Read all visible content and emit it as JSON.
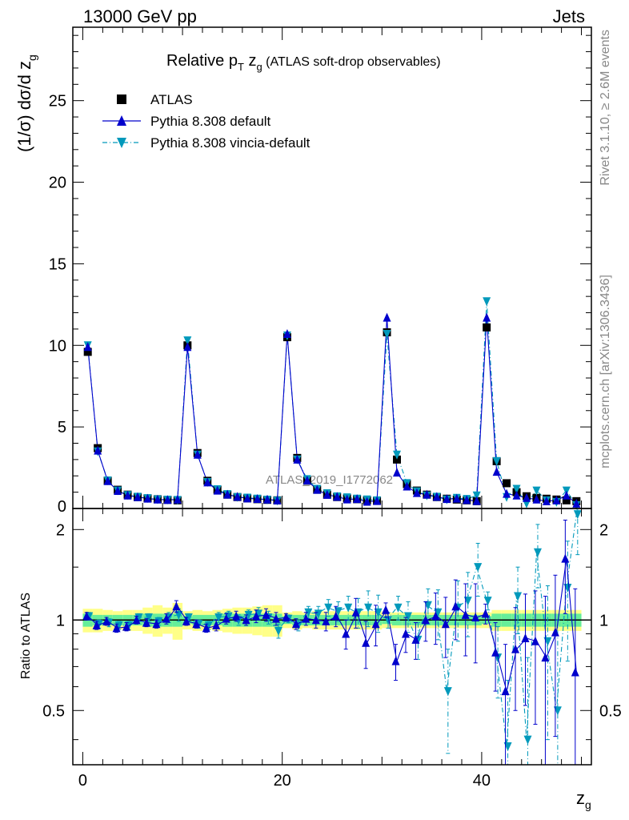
{
  "header": {
    "left": "13000 GeV pp",
    "right": "Jets"
  },
  "side": {
    "rivet": "Rivet 3.1.10, ≥ 2.6M events",
    "mcplots": "mcplots.cern.ch [arXiv:1306.3436]"
  },
  "plot": {
    "title_main": "Relative p",
    "title_sub_T": "T",
    "title_z": " z",
    "title_sub_g": "g",
    "title_tail": " (ATLAS soft-drop observables)",
    "ylabel_main": "(1/σ) dσ/d z",
    "ylabel_sub": "g",
    "xlabel_main": "z",
    "xlabel_sub": "g",
    "ratio_ylabel": "Ratio to ATLAS",
    "watermark": "ATLAS_2019_I1772062"
  },
  "legend": [
    {
      "label": "ATLAS",
      "color": "#000000",
      "marker": "square",
      "line": "none"
    },
    {
      "label": "Pythia 8.308 default",
      "color": "#0000cc",
      "marker": "triangle-up",
      "line": "solid"
    },
    {
      "label": "Pythia 8.308 vincia-default",
      "color": "#0099bb",
      "marker": "triangle-down",
      "line": "dashdot"
    }
  ],
  "chart_data": {
    "type": "line",
    "x": [
      0.5,
      1.5,
      2.5,
      3.5,
      4.5,
      5.5,
      6.5,
      7.5,
      8.5,
      9.5,
      10.5,
      11.5,
      12.5,
      13.5,
      14.5,
      15.5,
      16.5,
      17.5,
      18.5,
      19.5,
      20.5,
      21.5,
      22.5,
      23.5,
      24.5,
      25.5,
      26.5,
      27.5,
      28.5,
      29.5,
      30.5,
      31.5,
      32.5,
      33.5,
      34.5,
      35.5,
      36.5,
      37.5,
      38.5,
      39.5,
      40.5,
      41.5,
      42.5,
      43.5,
      44.5,
      45.5,
      46.5,
      47.5,
      48.5,
      49.5
    ],
    "xlim": [
      -1,
      51
    ],
    "ylim": [
      0,
      29.5
    ],
    "xticks": [
      0,
      20,
      40
    ],
    "yticks": [
      5,
      10,
      15,
      20,
      25
    ],
    "yticks_labels_extra": [
      "0"
    ],
    "ratio_ylim": [
      0.33,
      2.35
    ],
    "ratio_yscale": "log",
    "ratio_yticks": [
      0.5,
      1,
      2
    ],
    "series": [
      {
        "name": "ATLAS",
        "values": [
          9.6,
          3.7,
          1.7,
          1.15,
          0.85,
          0.7,
          0.62,
          0.57,
          0.53,
          0.5,
          10.0,
          3.4,
          1.7,
          1.15,
          0.85,
          0.7,
          0.62,
          0.57,
          0.53,
          0.5,
          10.5,
          3.1,
          1.7,
          1.15,
          0.85,
          0.7,
          0.62,
          0.57,
          0.5,
          0.47,
          10.8,
          3.0,
          1.5,
          1.1,
          0.85,
          0.7,
          0.6,
          0.55,
          0.5,
          0.45,
          11.1,
          2.9,
          1.55,
          1.0,
          0.75,
          0.65,
          0.6,
          0.55,
          0.5,
          0.45
        ]
      },
      {
        "name": "Pythia 8.308 default",
        "values": [
          9.9,
          3.55,
          1.68,
          1.08,
          0.8,
          0.7,
          0.61,
          0.55,
          0.53,
          0.55,
          9.9,
          3.3,
          1.6,
          1.1,
          0.85,
          0.72,
          0.62,
          0.59,
          0.55,
          0.5,
          10.7,
          3.0,
          1.72,
          1.15,
          0.84,
          0.72,
          0.56,
          0.58,
          0.42,
          0.46,
          11.7,
          2.2,
          1.35,
          0.95,
          0.85,
          0.72,
          0.58,
          0.61,
          0.52,
          0.46,
          11.7,
          2.25,
          0.9,
          0.8,
          0.65,
          0.55,
          0.45,
          0.5,
          0.8,
          0.3
        ],
        "ratio": [
          1.03,
          0.96,
          0.99,
          0.94,
          0.95,
          1.0,
          0.98,
          0.97,
          1.01,
          1.11,
          0.99,
          0.97,
          0.94,
          0.96,
          1.01,
          1.03,
          1.0,
          1.03,
          1.04,
          1.01,
          1.02,
          0.97,
          1.01,
          1.0,
          0.99,
          1.03,
          0.9,
          1.06,
          0.84,
          0.97,
          1.08,
          0.73,
          0.9,
          0.86,
          1.0,
          1.03,
          0.97,
          1.11,
          1.04,
          1.02,
          1.05,
          0.78,
          0.58,
          0.8,
          0.87,
          0.85,
          0.75,
          0.91,
          1.6,
          0.67
        ],
        "ratio_err": [
          0.03,
          0.03,
          0.03,
          0.03,
          0.03,
          0.03,
          0.03,
          0.03,
          0.04,
          0.05,
          0.03,
          0.03,
          0.03,
          0.04,
          0.04,
          0.04,
          0.04,
          0.05,
          0.05,
          0.05,
          0.03,
          0.04,
          0.05,
          0.06,
          0.07,
          0.08,
          0.1,
          0.12,
          0.15,
          0.15,
          0.06,
          0.1,
          0.12,
          0.12,
          0.15,
          0.2,
          0.22,
          0.25,
          0.28,
          0.3,
          0.08,
          0.2,
          0.25,
          0.3,
          0.35,
          0.4,
          0.45,
          0.5,
          0.55,
          0.6
        ]
      },
      {
        "name": "Pythia 8.308 vincia-default",
        "values": [
          10.0,
          3.5,
          1.72,
          1.1,
          0.82,
          0.72,
          0.63,
          0.56,
          0.54,
          0.52,
          10.3,
          3.3,
          1.62,
          1.18,
          0.88,
          0.7,
          0.66,
          0.6,
          0.54,
          0.48,
          10.6,
          3.0,
          1.8,
          1.2,
          0.93,
          0.74,
          0.68,
          0.6,
          0.55,
          0.5,
          10.7,
          3.3,
          1.55,
          1.05,
          0.8,
          0.72,
          0.55,
          0.65,
          0.58,
          0.8,
          12.7,
          2.9,
          0.7,
          1.2,
          0.3,
          1.1,
          0.5,
          0.4,
          1.1,
          0.2
        ],
        "ratio": [
          1.03,
          0.97,
          0.98,
          0.96,
          0.96,
          1.02,
          1.02,
          0.99,
          1.02,
          1.04,
          1.02,
          0.97,
          0.96,
          1.02,
          1.03,
          1.0,
          1.04,
          1.05,
          1.02,
          0.92,
          1.01,
          0.96,
          1.06,
          1.05,
          1.1,
          1.07,
          1.1,
          1.06,
          1.1,
          1.06,
          1.0,
          1.1,
          1.03,
          0.86,
          1.12,
          1.06,
          0.58,
          1.1,
          1.16,
          1.5,
          1.16,
          0.75,
          0.38,
          1.2,
          0.4,
          1.68,
          0.85,
          0.5,
          1.28,
          2.25
        ],
        "ratio_err": [
          0.03,
          0.03,
          0.03,
          0.03,
          0.03,
          0.03,
          0.03,
          0.03,
          0.04,
          0.05,
          0.03,
          0.03,
          0.03,
          0.04,
          0.04,
          0.04,
          0.04,
          0.05,
          0.05,
          0.05,
          0.03,
          0.04,
          0.05,
          0.06,
          0.07,
          0.08,
          0.1,
          0.12,
          0.15,
          0.15,
          0.06,
          0.1,
          0.12,
          0.12,
          0.15,
          0.2,
          0.22,
          0.25,
          0.28,
          0.3,
          0.08,
          0.2,
          0.25,
          0.3,
          0.35,
          0.4,
          0.45,
          0.5,
          0.55,
          0.6
        ]
      }
    ],
    "band_inner": [
      0.05,
      0.04,
      0.04,
      0.04,
      0.04,
      0.04,
      0.05,
      0.05,
      0.05,
      0.05,
      0.03,
      0.04,
      0.04,
      0.04,
      0.05,
      0.05,
      0.05,
      0.05,
      0.05,
      0.05,
      0.03,
      0.04,
      0.04,
      0.04,
      0.04,
      0.04,
      0.04,
      0.04,
      0.04,
      0.04,
      0.03,
      0.04,
      0.04,
      0.04,
      0.04,
      0.04,
      0.04,
      0.04,
      0.04,
      0.04,
      0.03,
      0.05,
      0.05,
      0.05,
      0.05,
      0.05,
      0.05,
      0.05,
      0.05,
      0.05
    ],
    "band_outer": [
      0.09,
      0.09,
      0.08,
      0.07,
      0.08,
      0.08,
      0.1,
      0.12,
      0.1,
      0.14,
      0.07,
      0.08,
      0.07,
      0.08,
      0.09,
      0.1,
      0.1,
      0.11,
      0.12,
      0.12,
      0.06,
      0.07,
      0.06,
      0.07,
      0.07,
      0.07,
      0.07,
      0.07,
      0.07,
      0.07,
      0.06,
      0.06,
      0.06,
      0.06,
      0.06,
      0.06,
      0.06,
      0.06,
      0.06,
      0.06,
      0.06,
      0.08,
      0.08,
      0.08,
      0.08,
      0.08,
      0.08,
      0.08,
      0.08,
      0.08
    ],
    "colors": {
      "band_inner": "#66ee99",
      "band_outer": "#ffff88",
      "reference": "#000000"
    }
  }
}
